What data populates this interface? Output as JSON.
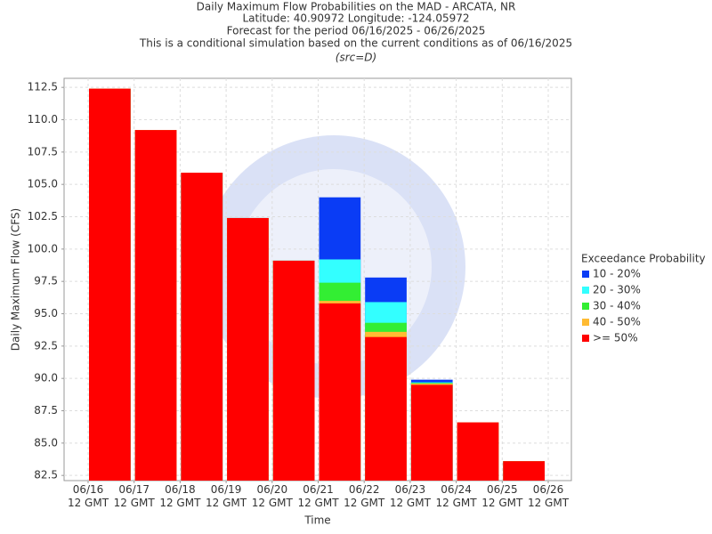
{
  "chart_data": {
    "type": "bar",
    "title": "Daily Maximum Flow Probabilities on the MAD - ARCATA, NR",
    "subtitles": [
      "Latitude: 40.90972 Longitude: -124.05972",
      "Forecast for the period 06/16/2025 - 06/26/2025",
      "This is a conditional simulation based on the current conditions as of 06/16/2025"
    ],
    "source": "(src=D)",
    "x_label": "Time",
    "y_label": "Daily Maximum Flow (CFS)",
    "legend_title": "Exceedance Probability",
    "legend_position": "right",
    "grid": true,
    "categories": [
      "06/16 12 GMT",
      "06/17 12 GMT",
      "06/18 12 GMT",
      "06/19 12 GMT",
      "06/20 12 GMT",
      "06/21 12 GMT",
      "06/22 12 GMT",
      "06/23 12 GMT",
      "06/24 12 GMT",
      "06/25 12 GMT",
      "06/26 12 GMT"
    ],
    "series": [
      {
        "name": "10 - 20%",
        "color": "#0a3cf5",
        "values": [
          112.4,
          109.2,
          105.9,
          102.4,
          99.1,
          104.0,
          97.8,
          89.9,
          86.6,
          83.6,
          null
        ]
      },
      {
        "name": "20 - 30%",
        "color": "#33ffff",
        "values": [
          112.4,
          109.2,
          105.9,
          102.4,
          99.1,
          99.2,
          95.9,
          89.7,
          86.6,
          83.6,
          null
        ]
      },
      {
        "name": "30 - 40%",
        "color": "#33ee33",
        "values": [
          112.4,
          109.2,
          105.9,
          102.4,
          99.1,
          97.4,
          94.3,
          89.65,
          86.6,
          83.6,
          null
        ]
      },
      {
        "name": "40 - 50%",
        "color": "#ffbb33",
        "values": [
          112.4,
          109.2,
          105.9,
          102.4,
          99.1,
          96.0,
          93.6,
          89.6,
          86.6,
          83.6,
          null
        ]
      },
      {
        "name": ">= 50%",
        "color": "#ff0000",
        "values": [
          112.4,
          109.2,
          105.9,
          102.4,
          99.1,
          95.8,
          93.2,
          89.5,
          86.6,
          83.6,
          null
        ]
      }
    ],
    "ylim": [
      82.1,
      113.2
    ],
    "yticks": [
      82.5,
      {
        "value": 85,
        "label": "85.0"
      },
      87.5,
      {
        "value": 90,
        "label": "90.0"
      },
      92.5,
      {
        "value": 95,
        "label": "95.0"
      },
      97.5,
      {
        "value": 100,
        "label": "100.0"
      },
      102.5,
      {
        "value": 105,
        "label": "105.0"
      },
      107.5,
      {
        "value": 110,
        "label": "110.0"
      },
      112.5
    ]
  }
}
